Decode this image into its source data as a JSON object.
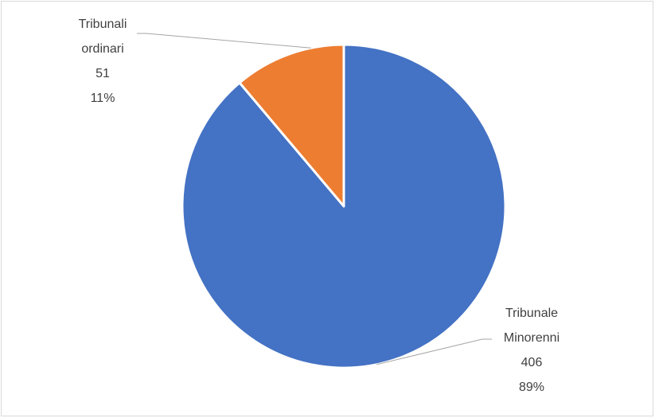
{
  "chart_data": {
    "type": "pie",
    "categories": [
      "Tribunale Minorenni",
      "Tribunali ordinari"
    ],
    "values": [
      406,
      51
    ],
    "percentages": [
      "89%",
      "11%"
    ],
    "colors": [
      "#4472c4",
      "#ed7d31"
    ],
    "labels": [
      {
        "name_lines": [
          "Tribunale",
          "Minorenni"
        ],
        "value": "406",
        "percent": "89%"
      },
      {
        "name_lines": [
          "Tribunali",
          "ordinari"
        ],
        "value": "51",
        "percent": "11%"
      }
    ],
    "start_angle": "12 o'clock",
    "direction": "clockwise",
    "legend": "none",
    "data_labels": "outside with leader lines"
  }
}
